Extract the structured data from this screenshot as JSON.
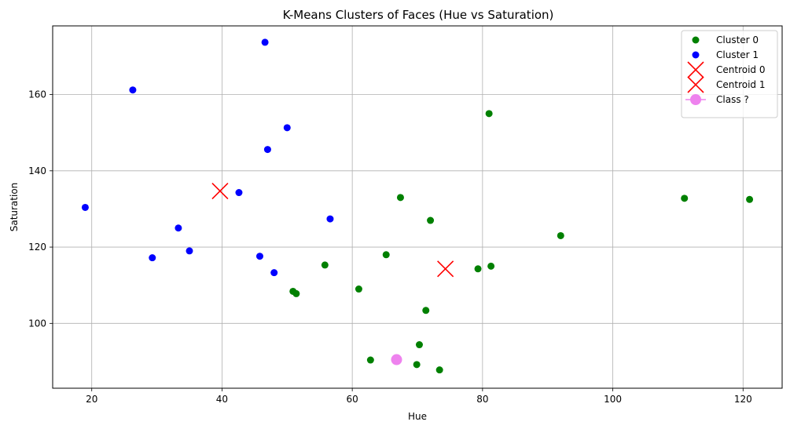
{
  "chart_data": {
    "type": "scatter",
    "title": "K-Means Clusters of Faces (Hue vs Saturation)",
    "xlabel": "Hue",
    "ylabel": "Saturation",
    "xlim": [
      14,
      126
    ],
    "ylim": [
      83,
      178
    ],
    "xticks": [
      20,
      40,
      60,
      80,
      100,
      120
    ],
    "yticks": [
      100,
      120,
      140,
      160
    ],
    "grid": true,
    "legend_position": "top-right",
    "series": [
      {
        "name": "Cluster 0",
        "color": "#008000",
        "marker": "circle",
        "points": [
          [
            81,
            155
          ],
          [
            67.4,
            133
          ],
          [
            72,
            127
          ],
          [
            111,
            132.8
          ],
          [
            121,
            132.5
          ],
          [
            92,
            123
          ],
          [
            65.2,
            118
          ],
          [
            55.8,
            115.3
          ],
          [
            79.3,
            114.3
          ],
          [
            81.3,
            115
          ],
          [
            61,
            109
          ],
          [
            50.9,
            108.4
          ],
          [
            51.4,
            107.8
          ],
          [
            71.3,
            103.4
          ],
          [
            70.3,
            94.4
          ],
          [
            62.8,
            90.4
          ],
          [
            69.9,
            89.2
          ],
          [
            73.4,
            87.8
          ]
        ]
      },
      {
        "name": "Cluster 1",
        "color": "#0000ff",
        "marker": "circle",
        "points": [
          [
            46.6,
            173.7
          ],
          [
            26.3,
            161.2
          ],
          [
            50,
            151.3
          ],
          [
            47,
            145.6
          ],
          [
            42.6,
            134.3
          ],
          [
            19,
            130.4
          ],
          [
            56.6,
            127.4
          ],
          [
            33.3,
            125
          ],
          [
            29.3,
            117.2
          ],
          [
            35,
            119
          ],
          [
            45.8,
            117.6
          ],
          [
            48,
            113.3
          ]
        ]
      },
      {
        "name": "Centroid 0",
        "color": "#ff0000",
        "marker": "x",
        "points": [
          [
            74.3,
            114.3
          ]
        ]
      },
      {
        "name": "Centroid 1",
        "color": "#ff0000",
        "marker": "x",
        "points": [
          [
            39.7,
            134.7
          ]
        ]
      },
      {
        "name": "Class ?",
        "color": "#ee82ee",
        "marker": "big-circle-line",
        "points": [
          [
            66.8,
            90.5
          ]
        ]
      }
    ]
  }
}
